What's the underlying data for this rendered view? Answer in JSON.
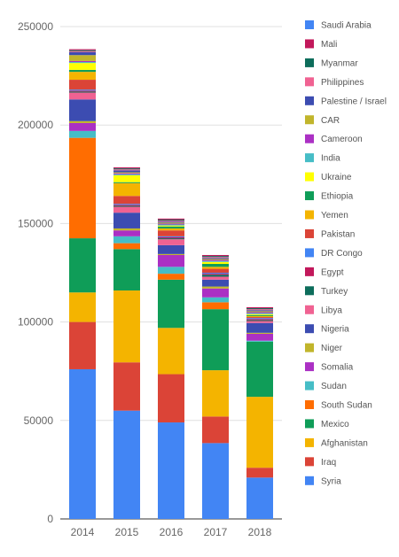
{
  "chart_data": {
    "type": "bar",
    "stacked": true,
    "categories": [
      "2014",
      "2015",
      "2016",
      "2017",
      "2018"
    ],
    "ylim": [
      0,
      250000
    ],
    "yticks": [
      0,
      50000,
      100000,
      150000,
      200000,
      250000
    ],
    "ytick_labels": [
      "0",
      "50000",
      "100000",
      "150000",
      "200000",
      "250000"
    ],
    "grid": true,
    "legend_position": "right",
    "series": [
      {
        "name": "Syria",
        "color": "#4285f4",
        "values": [
          76000,
          55000,
          49000,
          38500,
          21000
        ]
      },
      {
        "name": "Iraq",
        "color": "#db4437",
        "values": [
          24000,
          24500,
          24500,
          13500,
          5000
        ]
      },
      {
        "name": "Afghanistan",
        "color": "#f4b400",
        "values": [
          15000,
          36500,
          23500,
          23500,
          36000
        ]
      },
      {
        "name": "Mexico",
        "color": "#0f9d58",
        "values": [
          27500,
          21000,
          24500,
          31000,
          28000
        ]
      },
      {
        "name": "South Sudan",
        "color": "#ff6d01",
        "values": [
          51000,
          3000,
          3000,
          3500,
          0
        ]
      },
      {
        "name": "Sudan",
        "color": "#46bdc6",
        "values": [
          3500,
          3500,
          3500,
          2500,
          500
        ]
      },
      {
        "name": "Somalia",
        "color": "#ab30c4",
        "values": [
          4000,
          3000,
          6000,
          4500,
          3500
        ]
      },
      {
        "name": "Niger",
        "color": "#c1b52b",
        "values": [
          1000,
          1000,
          500,
          1000,
          500
        ]
      },
      {
        "name": "Nigeria",
        "color": "#3c4cb1",
        "values": [
          11000,
          8000,
          4500,
          3500,
          5000
        ]
      },
      {
        "name": "Libya",
        "color": "#f06292",
        "values": [
          3500,
          3000,
          3000,
          1500,
          1000
        ]
      },
      {
        "name": "Turkey",
        "color": "#0d6d5b",
        "values": [
          500,
          500,
          500,
          1000,
          500
        ]
      },
      {
        "name": "Egypt",
        "color": "#c2185b",
        "values": [
          500,
          500,
          500,
          500,
          500
        ]
      },
      {
        "name": "DR Congo",
        "color": "#4285f4",
        "values": [
          500,
          500,
          500,
          500,
          500
        ]
      },
      {
        "name": "Pakistan",
        "color": "#db4437",
        "values": [
          5000,
          4000,
          3000,
          2000,
          500
        ]
      },
      {
        "name": "Yemen",
        "color": "#f4b400",
        "values": [
          4000,
          6500,
          1000,
          1000,
          500
        ]
      },
      {
        "name": "Ethiopia",
        "color": "#0f9d58",
        "values": [
          1000,
          500,
          1000,
          1500,
          500
        ]
      },
      {
        "name": "Ukraine",
        "color": "#ffff00",
        "values": [
          3500,
          3500,
          500,
          1000,
          500
        ]
      },
      {
        "name": "India",
        "color": "#46bdc6",
        "values": [
          500,
          500,
          500,
          500,
          500
        ]
      },
      {
        "name": "Cameroon",
        "color": "#ab30c4",
        "values": [
          500,
          500,
          500,
          500,
          500
        ]
      },
      {
        "name": "CAR",
        "color": "#c1b52b",
        "values": [
          3000,
          500,
          500,
          500,
          500
        ]
      },
      {
        "name": "Palestine / Israel",
        "color": "#3c4cb1",
        "values": [
          1500,
          1000,
          500,
          500,
          500
        ]
      },
      {
        "name": "Philippines",
        "color": "#f06292",
        "values": [
          500,
          500,
          500,
          500,
          500
        ]
      },
      {
        "name": "Myanmar",
        "color": "#0d6d5b",
        "values": [
          500,
          500,
          500,
          500,
          500
        ]
      },
      {
        "name": "Mali",
        "color": "#c2185b",
        "values": [
          500,
          500,
          500,
          500,
          500
        ]
      },
      {
        "name": "Saudi Arabia",
        "color": "#4285f4",
        "values": [
          0,
          0,
          0,
          0,
          0
        ]
      }
    ]
  }
}
